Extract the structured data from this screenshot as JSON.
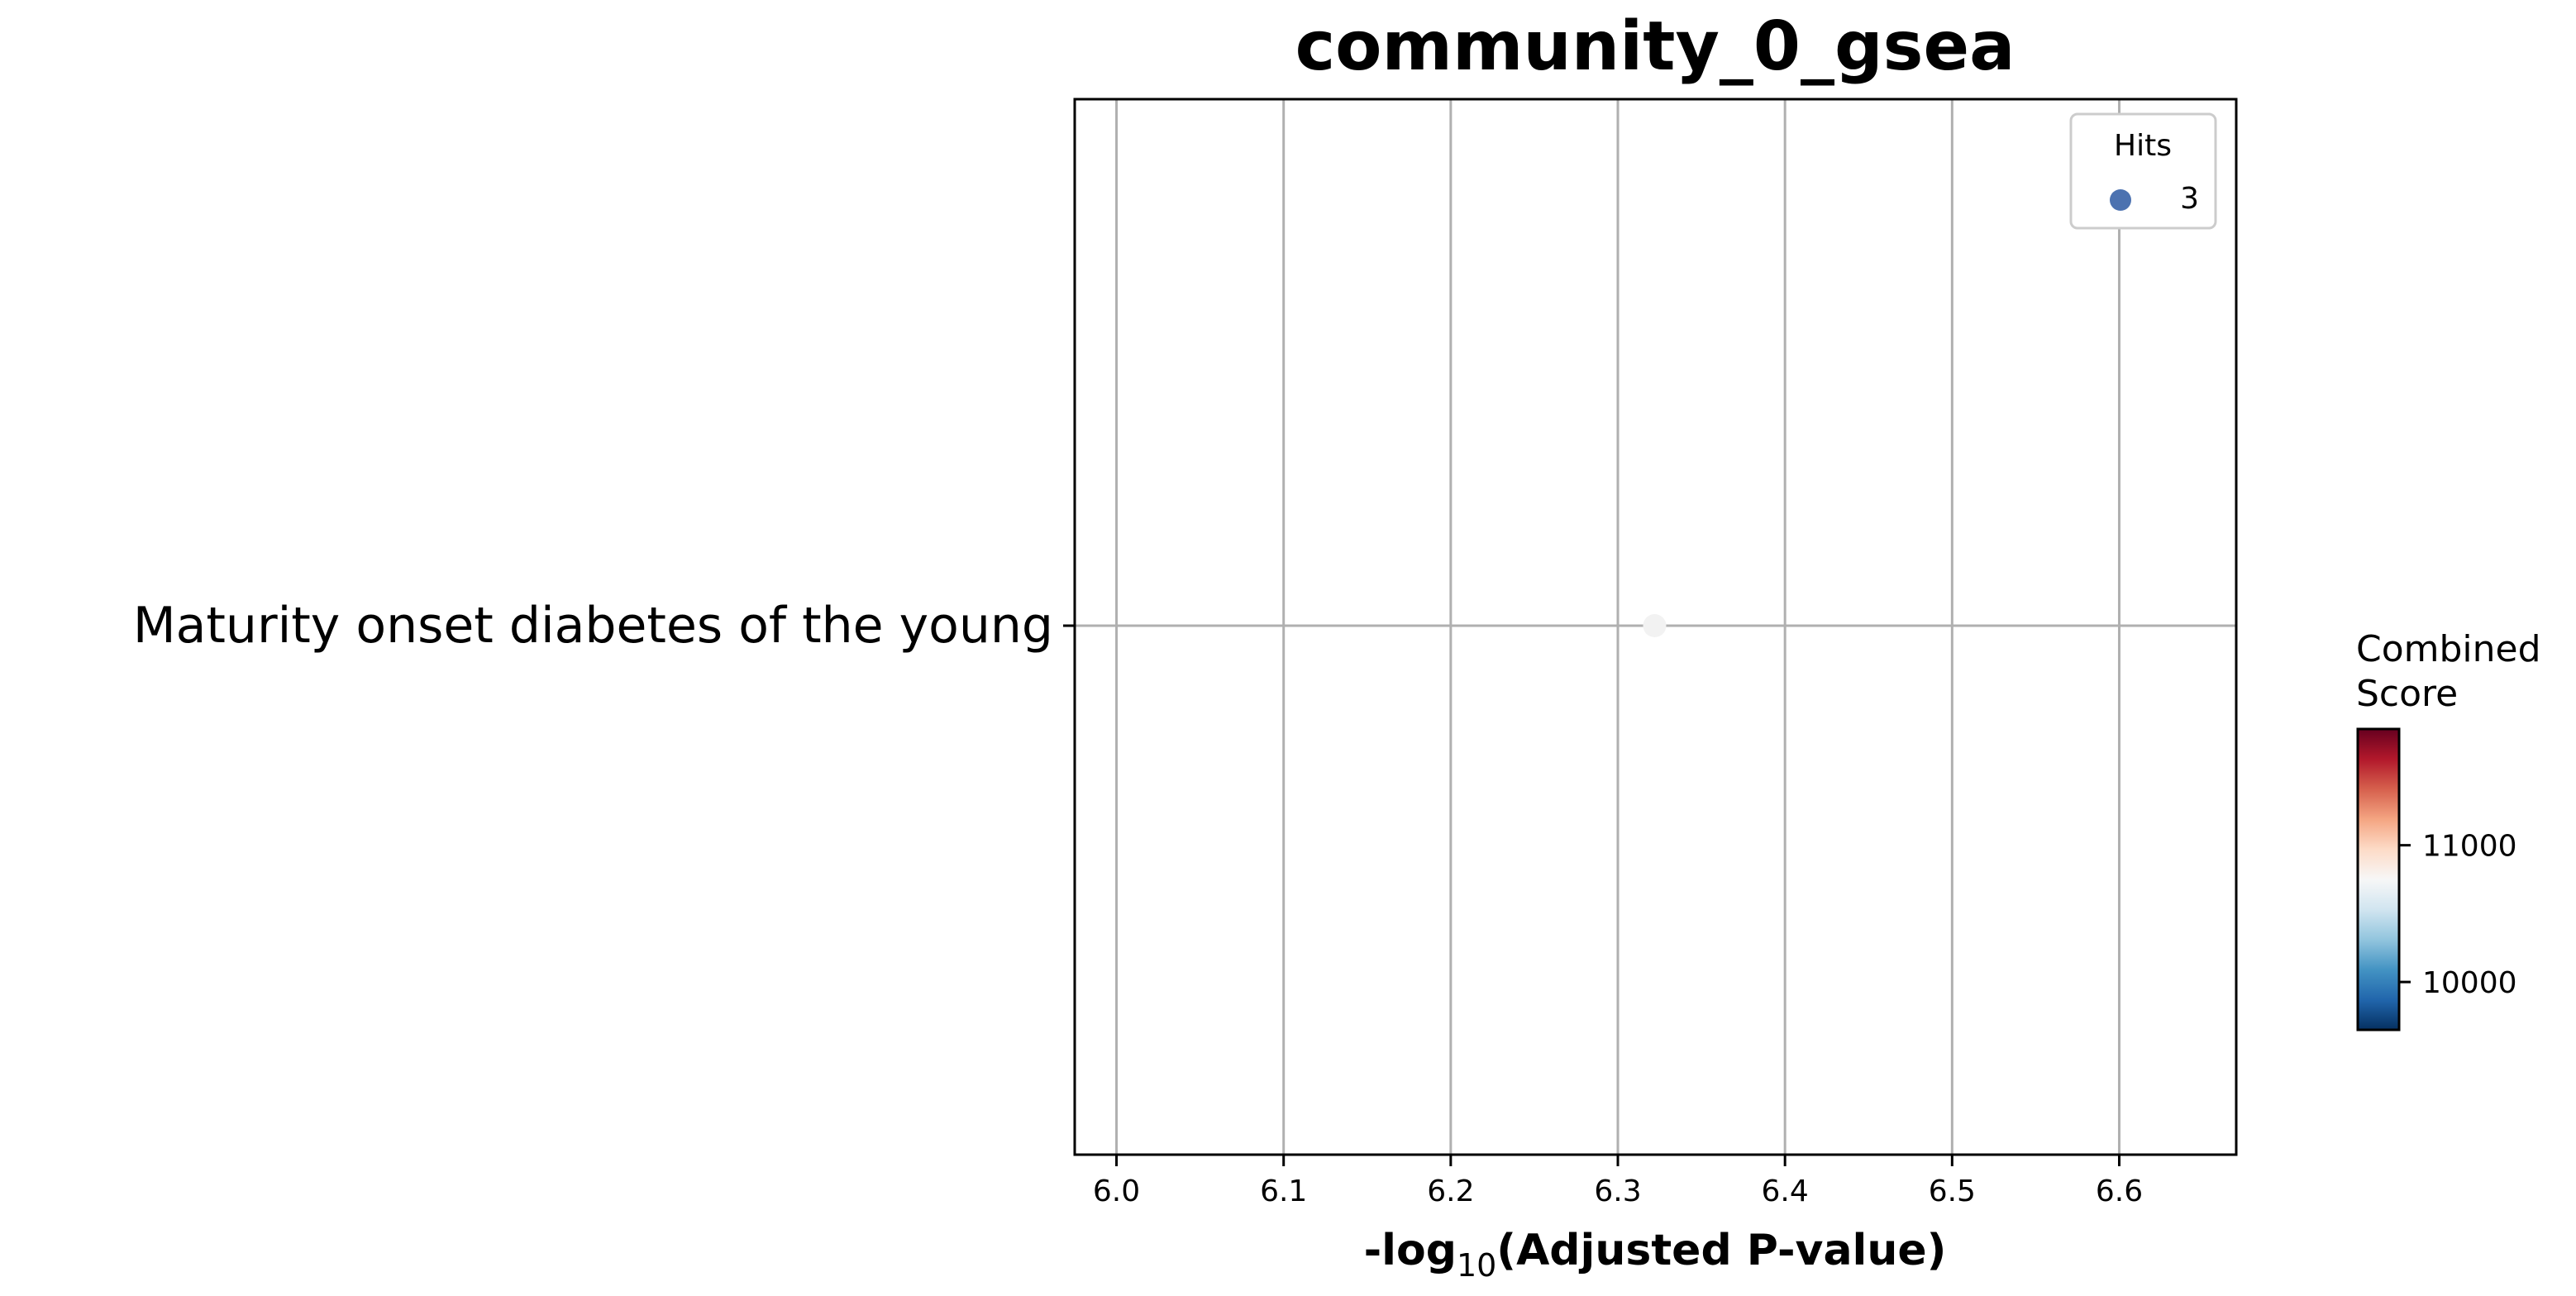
{
  "chart_data": {
    "type": "scatter",
    "title": "community_0_gsea",
    "xlabel_prefix": "-log",
    "xlabel_sub": "10",
    "xlabel_suffix": "(Adjusted P-value)",
    "xlim": [
      5.975,
      6.67
    ],
    "xticks": [
      6.0,
      6.1,
      6.2,
      6.3,
      6.4,
      6.5,
      6.6
    ],
    "xtick_labels": [
      "6.0",
      "6.1",
      "6.2",
      "6.3",
      "6.4",
      "6.5",
      "6.6"
    ],
    "categories": [
      "Maturity onset diabetes of the young"
    ],
    "points": [
      {
        "term": "Maturity onset diabetes of the young",
        "x": 6.322,
        "hits": 3,
        "combined_score": 10800
      }
    ],
    "grid": true,
    "legend": {
      "title": "Hits",
      "placement": "top-right",
      "entries": [
        {
          "label": "3",
          "color": "#4c72b0"
        }
      ]
    },
    "colorbar": {
      "title_line1": "Combined",
      "title_line2": "Score",
      "colormap": "RdBu_r",
      "range": [
        9650,
        11850
      ],
      "ticks": [
        10000,
        11000
      ],
      "tick_labels": [
        "10000",
        "11000"
      ]
    },
    "colors": {
      "grid": "#b0b0b0",
      "axis": "#000000",
      "point": "#f2f2f2"
    }
  }
}
